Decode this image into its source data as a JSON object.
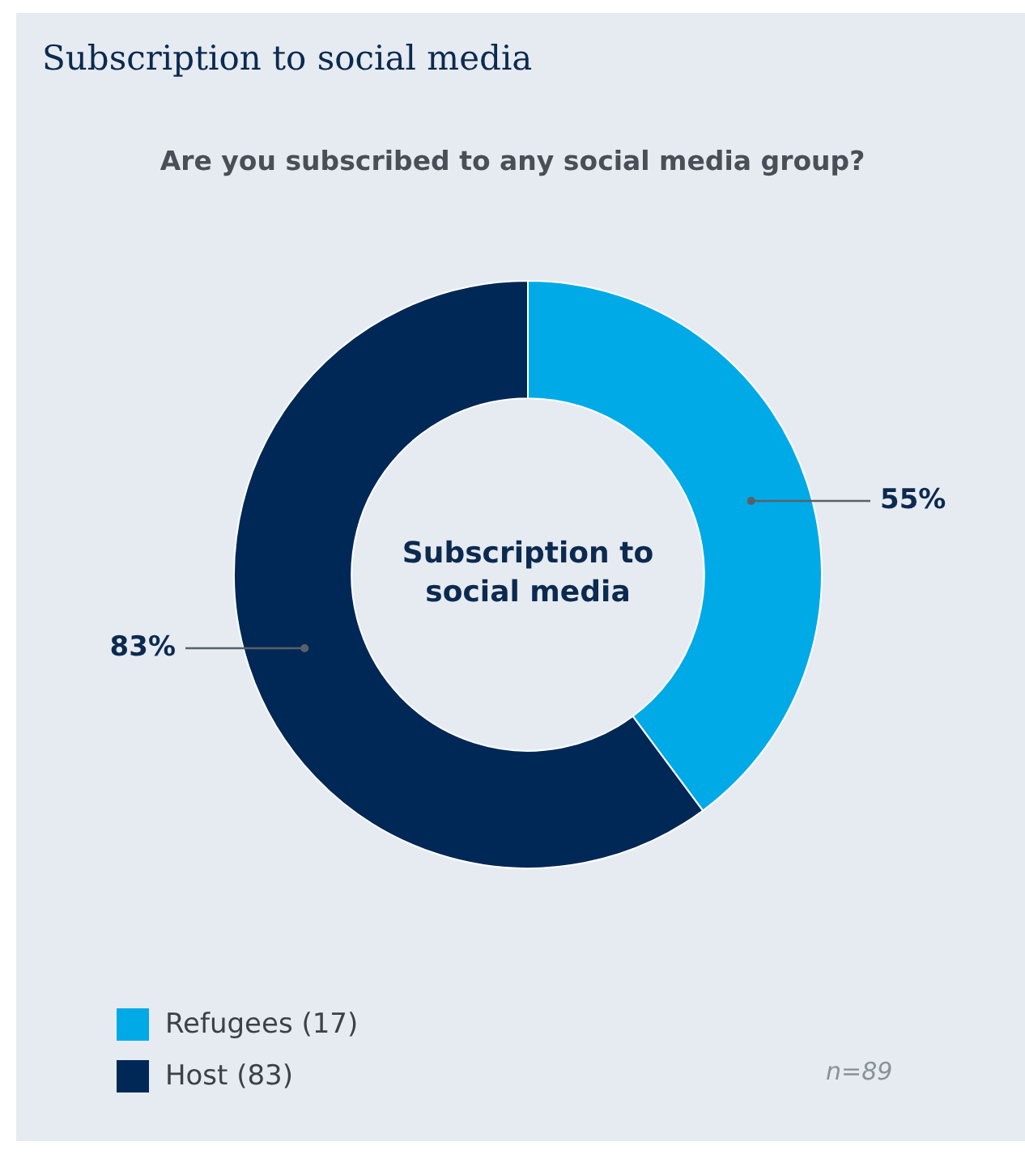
{
  "chart_data": {
    "type": "donut",
    "title": "Subscription to social media",
    "subtitle": "Are you subscribed to any social media group?",
    "categories": [
      "Refugees (17)",
      "Host (83)"
    ],
    "values": [
      55,
      83
    ],
    "colors": [
      "#00aae7",
      "#002856"
    ],
    "value_labels": [
      "55%",
      "83%"
    ],
    "legend": "bottom left",
    "annotations": [
      "Subscription to social media",
      "n=89"
    ]
  }
}
